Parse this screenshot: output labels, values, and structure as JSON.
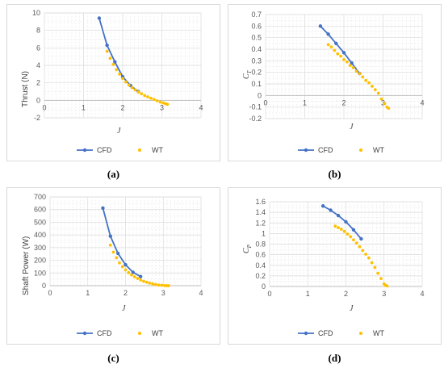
{
  "captions": [
    "(a)",
    "(b)",
    "(c)",
    "(d)"
  ],
  "chart_data": [
    {
      "type": "scatter",
      "ylabel": "Thrust (N)",
      "xlabel": "J",
      "xlim": [
        0,
        4
      ],
      "ylim": [
        -2,
        10
      ],
      "xticks": [
        "0",
        "1",
        "2",
        "3",
        "4"
      ],
      "yticks": [
        "-2",
        "0",
        "2",
        "4",
        "6",
        "8",
        "10"
      ],
      "series": [
        {
          "name": "CFD",
          "kind": "line",
          "color": "#4472c4",
          "x": [
            1.4,
            1.6,
            1.8,
            2.0,
            2.2,
            2.4
          ],
          "y": [
            9.4,
            6.3,
            4.4,
            2.7,
            1.7,
            1.0
          ]
        },
        {
          "name": "WT",
          "kind": "scatter",
          "color": "#ffc000",
          "x": [
            1.6,
            1.68,
            1.76,
            1.84,
            1.92,
            2.0,
            2.08,
            2.16,
            2.24,
            2.32,
            2.4,
            2.48,
            2.56,
            2.64,
            2.72,
            2.8,
            2.88,
            2.96,
            3.04,
            3.1,
            3.14
          ],
          "y": [
            5.6,
            4.8,
            4.1,
            3.5,
            3.0,
            2.5,
            2.1,
            1.75,
            1.45,
            1.2,
            0.95,
            0.75,
            0.55,
            0.4,
            0.25,
            0.1,
            -0.05,
            -0.2,
            -0.3,
            -0.4,
            -0.45
          ]
        }
      ]
    },
    {
      "type": "scatter",
      "ylabel": "C",
      "ylabel_sub": "T",
      "xlabel": "J",
      "xlim": [
        0,
        4
      ],
      "ylim": [
        -0.2,
        0.7
      ],
      "xticks": [
        "0",
        "1",
        "2",
        "3",
        "4"
      ],
      "yticks": [
        "-0.2",
        "-0.1",
        "0",
        "0.1",
        "0.2",
        "0.3",
        "0.4",
        "0.5",
        "0.6",
        "0.7"
      ],
      "series": [
        {
          "name": "CFD",
          "kind": "line",
          "color": "#4472c4",
          "x": [
            1.4,
            1.6,
            1.8,
            2.0,
            2.2,
            2.4
          ],
          "y": [
            0.6,
            0.53,
            0.45,
            0.37,
            0.28,
            0.19
          ]
        },
        {
          "name": "WT",
          "kind": "scatter",
          "color": "#ffc000",
          "x": [
            1.6,
            1.68,
            1.76,
            1.84,
            1.92,
            2.0,
            2.08,
            2.16,
            2.24,
            2.32,
            2.4,
            2.48,
            2.56,
            2.64,
            2.72,
            2.8,
            2.88,
            2.96,
            3.04,
            3.1,
            3.14
          ],
          "y": [
            0.44,
            0.42,
            0.39,
            0.36,
            0.34,
            0.31,
            0.29,
            0.26,
            0.24,
            0.21,
            0.19,
            0.16,
            0.13,
            0.11,
            0.08,
            0.05,
            0.02,
            -0.03,
            -0.07,
            -0.1,
            -0.11
          ]
        }
      ]
    },
    {
      "type": "scatter",
      "ylabel": "Shaft Power (W)",
      "xlabel": "J",
      "xlim": [
        0,
        4
      ],
      "ylim": [
        0,
        700
      ],
      "xticks": [
        "0",
        "1",
        "2",
        "3",
        "4"
      ],
      "yticks": [
        "0",
        "100",
        "200",
        "300",
        "400",
        "500",
        "600",
        "700"
      ],
      "series": [
        {
          "name": "CFD",
          "kind": "line",
          "color": "#4472c4",
          "x": [
            1.4,
            1.6,
            1.8,
            2.0,
            2.2,
            2.4
          ],
          "y": [
            612,
            390,
            255,
            165,
            105,
            72
          ]
        },
        {
          "name": "WT",
          "kind": "scatter",
          "color": "#ffc000",
          "x": [
            1.6,
            1.68,
            1.76,
            1.84,
            1.92,
            2.0,
            2.08,
            2.16,
            2.24,
            2.32,
            2.4,
            2.48,
            2.56,
            2.64,
            2.72,
            2.8,
            2.88,
            2.96,
            3.04,
            3.1,
            3.14
          ],
          "y": [
            320,
            265,
            220,
            180,
            150,
            125,
            103,
            85,
            70,
            57,
            45,
            35,
            27,
            20,
            14,
            9,
            5,
            3,
            1,
            0,
            0
          ]
        }
      ]
    },
    {
      "type": "scatter",
      "ylabel": "C",
      "ylabel_sub": "P",
      "xlabel": "J",
      "xlim": [
        0,
        4
      ],
      "ylim": [
        0,
        1.6
      ],
      "xticks": [
        "0",
        "1",
        "2",
        "3",
        "4"
      ],
      "yticks": [
        "0",
        "0.2",
        "0.4",
        "0.6",
        "0.8",
        "1",
        "1.2",
        "1.4",
        "1.6"
      ],
      "series": [
        {
          "name": "CFD",
          "kind": "line",
          "color": "#4472c4",
          "x": [
            1.4,
            1.6,
            1.8,
            2.0,
            2.2,
            2.4
          ],
          "y": [
            1.52,
            1.44,
            1.34,
            1.22,
            1.07,
            0.9
          ]
        },
        {
          "name": "WT",
          "kind": "scatter",
          "color": "#ffc000",
          "x": [
            1.72,
            1.8,
            1.88,
            1.96,
            2.04,
            2.12,
            2.2,
            2.28,
            2.36,
            2.44,
            2.52,
            2.6,
            2.68,
            2.76,
            2.84,
            2.92,
            3.0,
            3.04,
            3.08
          ],
          "y": [
            1.14,
            1.11,
            1.08,
            1.04,
            0.99,
            0.94,
            0.88,
            0.82,
            0.75,
            0.68,
            0.61,
            0.54,
            0.45,
            0.36,
            0.25,
            0.15,
            0.05,
            0.02,
            0.01
          ]
        }
      ]
    }
  ]
}
